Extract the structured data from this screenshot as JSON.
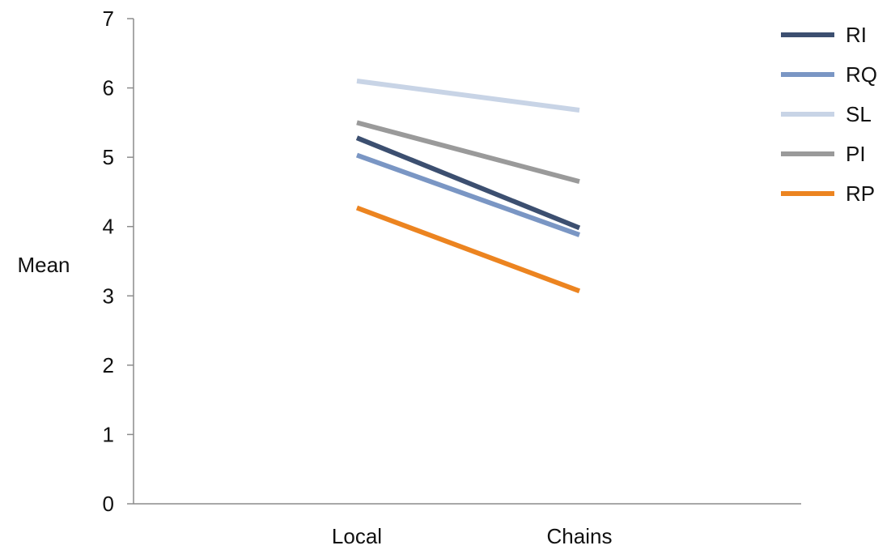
{
  "chart_data": {
    "type": "line",
    "categories": [
      "Local",
      "Chains"
    ],
    "series": [
      {
        "name": "RI",
        "values": [
          5.28,
          3.98
        ],
        "color": "#3c4f70"
      },
      {
        "name": "RQ",
        "values": [
          5.03,
          3.88
        ],
        "color": "#7a96c4"
      },
      {
        "name": "SL",
        "values": [
          6.1,
          5.68
        ],
        "color": "#c8d4e6"
      },
      {
        "name": "PI",
        "values": [
          5.5,
          4.65
        ],
        "color": "#9a9a9a"
      },
      {
        "name": "RP",
        "values": [
          4.27,
          3.07
        ],
        "color": "#ec8420"
      }
    ],
    "ylabel": "Mean",
    "ylim": [
      0,
      7
    ],
    "yticks": [
      "0",
      "1",
      "2",
      "3",
      "4",
      "5",
      "6",
      "7"
    ],
    "grid": false,
    "legend": "top-right"
  }
}
